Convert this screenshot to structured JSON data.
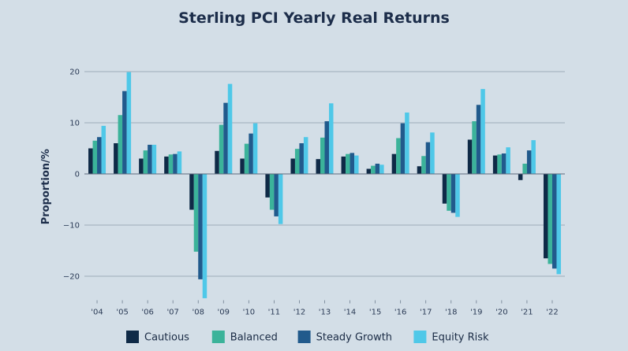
{
  "chart_data": {
    "type": "bar",
    "title": "Sterling PCI Yearly Real Returns",
    "xlabel": "",
    "ylabel": "Proportion/%",
    "ylim": [
      -25,
      20
    ],
    "yticks": [
      20,
      10,
      0,
      -10,
      -20
    ],
    "ytick_labels": [
      "20",
      "10",
      "0",
      "−10",
      "−20"
    ],
    "grid": true,
    "legend_position": "bottom",
    "categories": [
      "'04",
      "'05",
      "'06",
      "'07",
      "'08",
      "'09",
      "'10",
      "'11",
      "'12",
      "'13",
      "'14",
      "'15",
      "'16",
      "'17",
      "'18",
      "'19",
      "'20",
      "'21",
      "'22"
    ],
    "series": [
      {
        "name": "Cautious",
        "color": "#0f2a47",
        "values": [
          5.0,
          6.0,
          3.0,
          3.4,
          -7.0,
          4.5,
          3.0,
          -4.6,
          3.0,
          2.9,
          3.4,
          1.0,
          3.9,
          1.5,
          -5.8,
          6.7,
          3.6,
          -1.2,
          -16.5
        ]
      },
      {
        "name": "Balanced",
        "color": "#3bb39a",
        "values": [
          6.5,
          11.5,
          4.6,
          3.8,
          -15.2,
          9.6,
          5.9,
          -7.0,
          4.9,
          7.1,
          3.9,
          1.6,
          7.0,
          3.5,
          -7.2,
          10.3,
          3.8,
          2.0,
          -17.6
        ]
      },
      {
        "name": "Steady Growth",
        "color": "#215a8c",
        "values": [
          7.2,
          16.2,
          5.7,
          3.9,
          -20.6,
          13.9,
          7.9,
          -8.3,
          6.0,
          10.3,
          4.1,
          2.0,
          9.9,
          6.2,
          -7.6,
          13.5,
          4.0,
          4.6,
          -18.5
        ]
      },
      {
        "name": "Equity Risk",
        "color": "#4fc8e8",
        "values": [
          9.4,
          19.9,
          5.7,
          4.4,
          -24.3,
          17.6,
          9.9,
          -9.8,
          7.2,
          13.8,
          3.6,
          1.8,
          12.0,
          8.1,
          -8.4,
          16.6,
          5.2,
          6.6,
          -19.6
        ]
      }
    ]
  }
}
